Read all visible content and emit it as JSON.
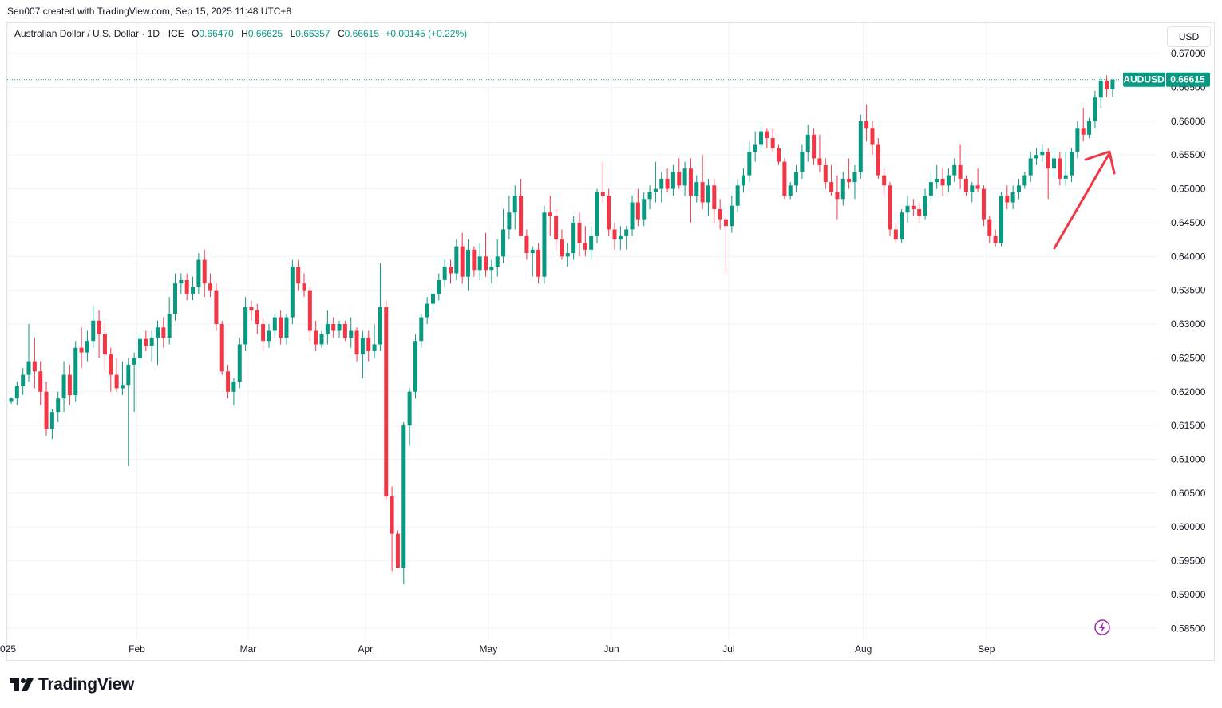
{
  "header": {
    "credit": "Sen007 created with TradingView.com, Sep 15, 2025 11:48 UTC+8"
  },
  "legend": {
    "symbol": "Australian Dollar / U.S. Dollar · 1D · ICE",
    "o_label": "O",
    "o": "0.66470",
    "h_label": "H",
    "h": "0.66625",
    "l_label": "L",
    "l": "0.66357",
    "c_label": "C",
    "c": "0.66615",
    "change": "+0.00145 (+0.22%)"
  },
  "currency": "USD",
  "price_tag": {
    "ticker": "AUDUSD",
    "price": "0.66615"
  },
  "footer": {
    "brand": "TradingView"
  },
  "colors": {
    "up": "#089981",
    "down": "#f23645",
    "grid": "#f0f3fa",
    "arrow": "#f23645"
  },
  "icons": [
    "lightning-icon",
    "tradingview-logo-icon",
    "trend-arrow-icon"
  ],
  "chart_data": {
    "type": "candlestick",
    "symbol": "AUDUSD",
    "ylim": [
      0.5835,
      0.6745
    ],
    "y_ticks": [
      "0.67000",
      "0.66500",
      "0.66000",
      "0.65500",
      "0.65000",
      "0.64500",
      "0.64000",
      "0.63500",
      "0.63000",
      "0.62500",
      "0.62000",
      "0.61500",
      "0.61000",
      "0.60500",
      "0.60000",
      "0.59500",
      "0.59000",
      "0.58500"
    ],
    "x_ticks": [
      {
        "label": "025",
        "index": 0
      },
      {
        "label": "Feb",
        "index": 22
      },
      {
        "label": "Mar",
        "index": 41
      },
      {
        "label": "Apr",
        "index": 61
      },
      {
        "label": "May",
        "index": 82
      },
      {
        "label": "Jun",
        "index": 103
      },
      {
        "label": "Jul",
        "index": 123
      },
      {
        "label": "Aug",
        "index": 146
      },
      {
        "label": "Sep",
        "index": 167
      }
    ],
    "last_price": 0.66615,
    "candles": [
      [
        0.6185,
        0.6192,
        0.6182,
        0.619
      ],
      [
        0.619,
        0.6215,
        0.618,
        0.6208
      ],
      [
        0.6208,
        0.6235,
        0.6195,
        0.6225
      ],
      [
        0.6225,
        0.63,
        0.6215,
        0.6245
      ],
      [
        0.6245,
        0.628,
        0.6205,
        0.623
      ],
      [
        0.623,
        0.6245,
        0.618,
        0.62
      ],
      [
        0.62,
        0.6215,
        0.6135,
        0.6145
      ],
      [
        0.6145,
        0.6175,
        0.613,
        0.617
      ],
      [
        0.617,
        0.62,
        0.6155,
        0.619
      ],
      [
        0.619,
        0.6245,
        0.617,
        0.6225
      ],
      [
        0.6225,
        0.624,
        0.618,
        0.6195
      ],
      [
        0.6195,
        0.6275,
        0.6185,
        0.6265
      ],
      [
        0.6265,
        0.6295,
        0.6235,
        0.6258
      ],
      [
        0.6258,
        0.629,
        0.6245,
        0.6275
      ],
      [
        0.6275,
        0.6328,
        0.6265,
        0.6305
      ],
      [
        0.6305,
        0.632,
        0.625,
        0.6285
      ],
      [
        0.6285,
        0.63,
        0.623,
        0.6255
      ],
      [
        0.6255,
        0.6265,
        0.62,
        0.6225
      ],
      [
        0.6225,
        0.625,
        0.62,
        0.6205
      ],
      [
        0.6205,
        0.6245,
        0.6195,
        0.621
      ],
      [
        0.621,
        0.625,
        0.609,
        0.624
      ],
      [
        0.624,
        0.6258,
        0.617,
        0.625
      ],
      [
        0.625,
        0.6285,
        0.6235,
        0.6278
      ],
      [
        0.6278,
        0.629,
        0.626,
        0.6268
      ],
      [
        0.6268,
        0.629,
        0.6245,
        0.628
      ],
      [
        0.628,
        0.6305,
        0.624,
        0.6295
      ],
      [
        0.6295,
        0.631,
        0.6265,
        0.628
      ],
      [
        0.628,
        0.634,
        0.627,
        0.6315
      ],
      [
        0.6315,
        0.6375,
        0.6305,
        0.636
      ],
      [
        0.636,
        0.6375,
        0.6345,
        0.6365
      ],
      [
        0.6365,
        0.6375,
        0.6335,
        0.6345
      ],
      [
        0.6345,
        0.637,
        0.6335,
        0.6355
      ],
      [
        0.6355,
        0.6405,
        0.6345,
        0.6395
      ],
      [
        0.6395,
        0.641,
        0.634,
        0.636
      ],
      [
        0.636,
        0.6375,
        0.634,
        0.635
      ],
      [
        0.635,
        0.636,
        0.629,
        0.63
      ],
      [
        0.63,
        0.6305,
        0.6225,
        0.623
      ],
      [
        0.623,
        0.624,
        0.619,
        0.62
      ],
      [
        0.62,
        0.622,
        0.618,
        0.6215
      ],
      [
        0.6215,
        0.628,
        0.6205,
        0.627
      ],
      [
        0.627,
        0.634,
        0.626,
        0.6325
      ],
      [
        0.6325,
        0.6335,
        0.6305,
        0.632
      ],
      [
        0.632,
        0.633,
        0.6285,
        0.63
      ],
      [
        0.63,
        0.631,
        0.626,
        0.6275
      ],
      [
        0.6275,
        0.63,
        0.6265,
        0.629
      ],
      [
        0.629,
        0.6315,
        0.628,
        0.631
      ],
      [
        0.631,
        0.632,
        0.627,
        0.628
      ],
      [
        0.628,
        0.6315,
        0.627,
        0.631
      ],
      [
        0.631,
        0.6395,
        0.63,
        0.6385
      ],
      [
        0.6385,
        0.6395,
        0.635,
        0.636
      ],
      [
        0.636,
        0.6375,
        0.634,
        0.635
      ],
      [
        0.635,
        0.6355,
        0.6275,
        0.629
      ],
      [
        0.629,
        0.6305,
        0.626,
        0.627
      ],
      [
        0.627,
        0.629,
        0.6265,
        0.6285
      ],
      [
        0.6285,
        0.632,
        0.627,
        0.63
      ],
      [
        0.63,
        0.631,
        0.628,
        0.629
      ],
      [
        0.629,
        0.6305,
        0.628,
        0.63
      ],
      [
        0.63,
        0.6305,
        0.6275,
        0.628
      ],
      [
        0.628,
        0.631,
        0.6265,
        0.629
      ],
      [
        0.629,
        0.6295,
        0.6245,
        0.6255
      ],
      [
        0.6255,
        0.629,
        0.622,
        0.628
      ],
      [
        0.628,
        0.629,
        0.6245,
        0.626
      ],
      [
        0.626,
        0.63,
        0.625,
        0.627
      ],
      [
        0.627,
        0.639,
        0.626,
        0.6325
      ],
      [
        0.6325,
        0.6335,
        0.604,
        0.6045
      ],
      [
        0.6045,
        0.606,
        0.5935,
        0.599
      ],
      [
        0.599,
        0.5995,
        0.594,
        0.594
      ],
      [
        0.594,
        0.6155,
        0.5915,
        0.615
      ],
      [
        0.615,
        0.6205,
        0.612,
        0.62
      ],
      [
        0.62,
        0.6285,
        0.619,
        0.6275
      ],
      [
        0.6275,
        0.6315,
        0.6265,
        0.631
      ],
      [
        0.631,
        0.634,
        0.63,
        0.633
      ],
      [
        0.633,
        0.635,
        0.6315,
        0.6345
      ],
      [
        0.6345,
        0.6375,
        0.6335,
        0.6365
      ],
      [
        0.6365,
        0.6395,
        0.6355,
        0.6385
      ],
      [
        0.6385,
        0.6395,
        0.636,
        0.6375
      ],
      [
        0.6375,
        0.6425,
        0.6365,
        0.6415
      ],
      [
        0.6415,
        0.6435,
        0.636,
        0.637
      ],
      [
        0.637,
        0.6425,
        0.635,
        0.641
      ],
      [
        0.641,
        0.6415,
        0.637,
        0.638
      ],
      [
        0.638,
        0.642,
        0.6365,
        0.64
      ],
      [
        0.64,
        0.6435,
        0.637,
        0.638
      ],
      [
        0.638,
        0.6395,
        0.636,
        0.6385
      ],
      [
        0.6385,
        0.6425,
        0.637,
        0.64
      ],
      [
        0.64,
        0.647,
        0.639,
        0.644
      ],
      [
        0.644,
        0.649,
        0.6425,
        0.6465
      ],
      [
        0.6465,
        0.6505,
        0.644,
        0.649
      ],
      [
        0.649,
        0.6515,
        0.643,
        0.643
      ],
      [
        0.643,
        0.644,
        0.6395,
        0.6405
      ],
      [
        0.6405,
        0.6415,
        0.637,
        0.641
      ],
      [
        0.641,
        0.642,
        0.636,
        0.637
      ],
      [
        0.637,
        0.6475,
        0.636,
        0.6465
      ],
      [
        0.6465,
        0.649,
        0.643,
        0.646
      ],
      [
        0.646,
        0.647,
        0.641,
        0.6425
      ],
      [
        0.6425,
        0.644,
        0.6395,
        0.64
      ],
      [
        0.64,
        0.642,
        0.6385,
        0.6405
      ],
      [
        0.6405,
        0.646,
        0.6395,
        0.645
      ],
      [
        0.645,
        0.6465,
        0.64,
        0.642
      ],
      [
        0.642,
        0.6445,
        0.64,
        0.641
      ],
      [
        0.641,
        0.6445,
        0.6395,
        0.643
      ],
      [
        0.643,
        0.65,
        0.642,
        0.6495
      ],
      [
        0.6495,
        0.654,
        0.648,
        0.649
      ],
      [
        0.649,
        0.65,
        0.643,
        0.644
      ],
      [
        0.644,
        0.645,
        0.641,
        0.6425
      ],
      [
        0.6425,
        0.6445,
        0.641,
        0.643
      ],
      [
        0.643,
        0.6445,
        0.641,
        0.644
      ],
      [
        0.644,
        0.649,
        0.643,
        0.648
      ],
      [
        0.648,
        0.65,
        0.6445,
        0.6455
      ],
      [
        0.6455,
        0.6495,
        0.6445,
        0.6485
      ],
      [
        0.6485,
        0.6505,
        0.647,
        0.6495
      ],
      [
        0.6495,
        0.654,
        0.648,
        0.65
      ],
      [
        0.65,
        0.6525,
        0.648,
        0.6515
      ],
      [
        0.6515,
        0.653,
        0.6495,
        0.65
      ],
      [
        0.65,
        0.6535,
        0.649,
        0.6525
      ],
      [
        0.6525,
        0.6545,
        0.65,
        0.6505
      ],
      [
        0.6505,
        0.654,
        0.649,
        0.653
      ],
      [
        0.653,
        0.6545,
        0.645,
        0.649
      ],
      [
        0.649,
        0.652,
        0.648,
        0.651
      ],
      [
        0.651,
        0.655,
        0.647,
        0.648
      ],
      [
        0.648,
        0.6515,
        0.646,
        0.6505
      ],
      [
        0.6505,
        0.6515,
        0.645,
        0.647
      ],
      [
        0.647,
        0.6485,
        0.644,
        0.6455
      ],
      [
        0.6455,
        0.646,
        0.6375,
        0.6445
      ],
      [
        0.6445,
        0.649,
        0.6435,
        0.6475
      ],
      [
        0.6475,
        0.6515,
        0.6465,
        0.6505
      ],
      [
        0.6505,
        0.653,
        0.6495,
        0.652
      ],
      [
        0.652,
        0.657,
        0.651,
        0.6555
      ],
      [
        0.6555,
        0.6585,
        0.654,
        0.6565
      ],
      [
        0.6565,
        0.6595,
        0.6555,
        0.6585
      ],
      [
        0.6585,
        0.659,
        0.656,
        0.6575
      ],
      [
        0.6575,
        0.659,
        0.6555,
        0.656
      ],
      [
        0.656,
        0.6565,
        0.6535,
        0.654
      ],
      [
        0.654,
        0.6545,
        0.6485,
        0.649
      ],
      [
        0.649,
        0.651,
        0.6485,
        0.6505
      ],
      [
        0.6505,
        0.6535,
        0.6495,
        0.6525
      ],
      [
        0.6525,
        0.6565,
        0.6515,
        0.6555
      ],
      [
        0.6555,
        0.6595,
        0.654,
        0.658
      ],
      [
        0.658,
        0.659,
        0.6535,
        0.6545
      ],
      [
        0.6545,
        0.658,
        0.6525,
        0.6535
      ],
      [
        0.6535,
        0.6545,
        0.65,
        0.651
      ],
      [
        0.651,
        0.6535,
        0.649,
        0.6495
      ],
      [
        0.6495,
        0.652,
        0.6455,
        0.6485
      ],
      [
        0.6485,
        0.6525,
        0.6475,
        0.6515
      ],
      [
        0.6515,
        0.6545,
        0.65,
        0.651
      ],
      [
        0.651,
        0.6535,
        0.6485,
        0.6525
      ],
      [
        0.6525,
        0.661,
        0.6515,
        0.66
      ],
      [
        0.66,
        0.6625,
        0.657,
        0.659
      ],
      [
        0.659,
        0.66,
        0.655,
        0.6565
      ],
      [
        0.6565,
        0.6575,
        0.6515,
        0.652
      ],
      [
        0.652,
        0.653,
        0.649,
        0.6505
      ],
      [
        0.6505,
        0.651,
        0.643,
        0.644
      ],
      [
        0.644,
        0.645,
        0.642,
        0.6425
      ],
      [
        0.6425,
        0.647,
        0.642,
        0.6465
      ],
      [
        0.6465,
        0.649,
        0.645,
        0.6475
      ],
      [
        0.6475,
        0.6485,
        0.646,
        0.647
      ],
      [
        0.647,
        0.648,
        0.645,
        0.646
      ],
      [
        0.646,
        0.65,
        0.6455,
        0.649
      ],
      [
        0.649,
        0.6525,
        0.648,
        0.651
      ],
      [
        0.651,
        0.6535,
        0.65,
        0.6515
      ],
      [
        0.6515,
        0.653,
        0.649,
        0.6505
      ],
      [
        0.6505,
        0.653,
        0.6495,
        0.652
      ],
      [
        0.652,
        0.6545,
        0.651,
        0.6535
      ],
      [
        0.6535,
        0.6565,
        0.65,
        0.6515
      ],
      [
        0.6515,
        0.652,
        0.649,
        0.6495
      ],
      [
        0.6495,
        0.651,
        0.648,
        0.6505
      ],
      [
        0.6505,
        0.653,
        0.6495,
        0.65
      ],
      [
        0.65,
        0.6505,
        0.6445,
        0.6455
      ],
      [
        0.6455,
        0.646,
        0.642,
        0.643
      ],
      [
        0.643,
        0.644,
        0.6415,
        0.642
      ],
      [
        0.642,
        0.6495,
        0.6415,
        0.649
      ],
      [
        0.649,
        0.6505,
        0.647,
        0.648
      ],
      [
        0.648,
        0.6505,
        0.647,
        0.6495
      ],
      [
        0.6495,
        0.6515,
        0.6485,
        0.6505
      ],
      [
        0.6505,
        0.6525,
        0.65,
        0.652
      ],
      [
        0.652,
        0.6555,
        0.651,
        0.6545
      ],
      [
        0.6545,
        0.656,
        0.6535,
        0.655
      ],
      [
        0.655,
        0.6565,
        0.654,
        0.6555
      ],
      [
        0.6555,
        0.656,
        0.6485,
        0.653
      ],
      [
        0.653,
        0.656,
        0.6515,
        0.6545
      ],
      [
        0.6545,
        0.6555,
        0.6505,
        0.6515
      ],
      [
        0.6515,
        0.6555,
        0.6505,
        0.652
      ],
      [
        0.652,
        0.656,
        0.651,
        0.6555
      ],
      [
        0.6555,
        0.66,
        0.6545,
        0.659
      ],
      [
        0.659,
        0.662,
        0.657,
        0.658
      ],
      [
        0.658,
        0.6605,
        0.6575,
        0.66
      ],
      [
        0.66,
        0.6645,
        0.659,
        0.6635
      ],
      [
        0.6635,
        0.6665,
        0.662,
        0.666
      ],
      [
        0.666,
        0.6668,
        0.6636,
        0.6647
      ],
      [
        0.6647,
        0.6662,
        0.6636,
        0.66615
      ]
    ]
  }
}
